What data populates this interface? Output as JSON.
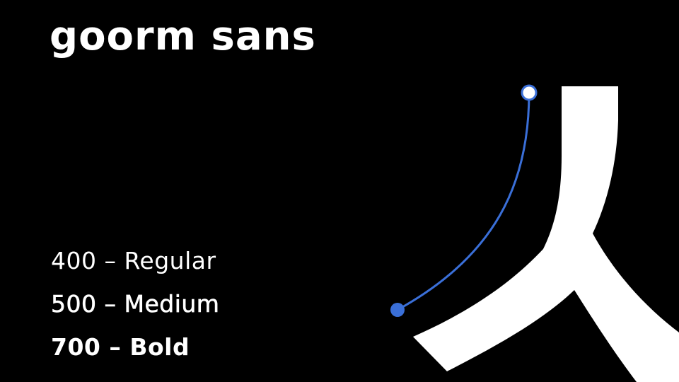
{
  "title": "goorm sans",
  "weights": [
    {
      "label": "400 – Regular"
    },
    {
      "label": "500 – Medium"
    },
    {
      "label": "700 – Bold"
    }
  ],
  "colors": {
    "background": "#000000",
    "text": "#ffffff",
    "accent": "#3a6fd8"
  },
  "icons": {
    "glyph": "hangul-siot-glyph",
    "curve": "bezier-curve-icon"
  }
}
